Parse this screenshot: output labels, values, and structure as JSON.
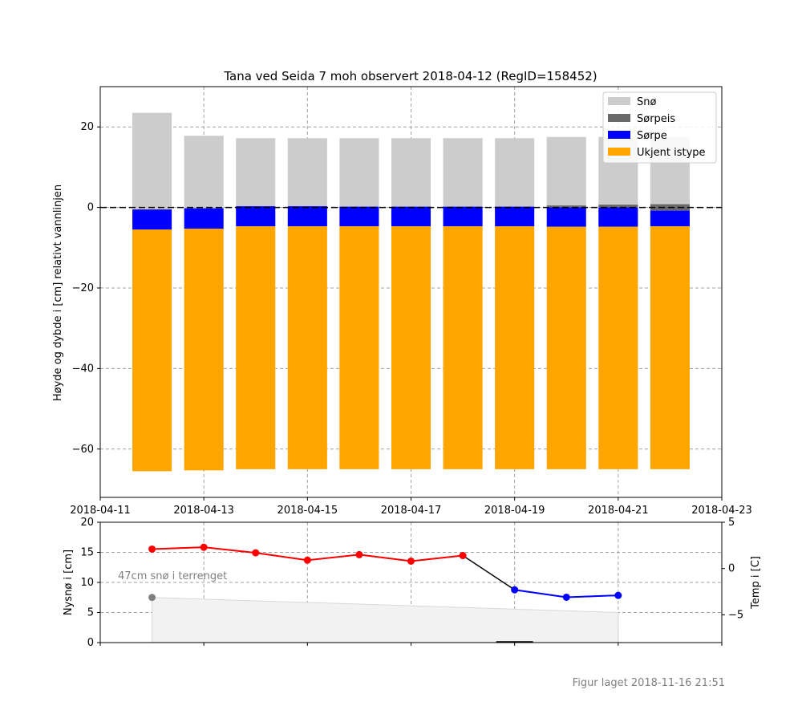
{
  "title": "Tana ved Seida 7 moh observert 2018-04-12 (RegID=158452)",
  "footer": "Figur laget 2018-11-16 21:51",
  "chart_data": [
    {
      "type": "bar",
      "stacked": true,
      "ylabel": "Høyde og dybde i [cm] relativt vannlinjen",
      "ylim": [
        -72,
        30
      ],
      "yticks": [
        20,
        0,
        -20,
        -40,
        -60
      ],
      "xlim": [
        "2018-04-11",
        "2018-04-23"
      ],
      "xticks": [
        "2018-04-11",
        "2018-04-13",
        "2018-04-15",
        "2018-04-17",
        "2018-04-19",
        "2018-04-21",
        "2018-04-23"
      ],
      "grid": true,
      "legend_position": "top-right",
      "legend": [
        {
          "name": "Snø",
          "color": "#cccccc"
        },
        {
          "name": "Sørpeis",
          "color": "#696969"
        },
        {
          "name": "Sørpe",
          "color": "#0000ff"
        },
        {
          "name": "Ukjent istype",
          "color": "#ffa500"
        }
      ],
      "water_line": 0,
      "dates": [
        "2018-04-12",
        "2018-04-13",
        "2018-04-14",
        "2018-04-15",
        "2018-04-16",
        "2018-04-17",
        "2018-04-18",
        "2018-04-19",
        "2018-04-20",
        "2018-04-21",
        "2018-04-22"
      ],
      "bars": [
        {
          "segments": [
            {
              "type": "Snø",
              "from": -0.5,
              "to": 23.5
            },
            {
              "type": "Sørpe",
              "from": -5.5,
              "to": -0.5
            },
            {
              "type": "Ukjent istype",
              "from": -65.5,
              "to": -5.5
            }
          ]
        },
        {
          "segments": [
            {
              "type": "Snø",
              "from": -0.2,
              "to": 17.8
            },
            {
              "type": "Sørpe",
              "from": -5.3,
              "to": -0.2
            },
            {
              "type": "Ukjent istype",
              "from": -65.3,
              "to": -5.3
            }
          ]
        },
        {
          "segments": [
            {
              "type": "Snø",
              "from": 0.3,
              "to": 17.2
            },
            {
              "type": "Sørpe",
              "from": -4.7,
              "to": 0.3
            },
            {
              "type": "Ukjent istype",
              "from": -65,
              "to": -4.7
            }
          ]
        },
        {
          "segments": [
            {
              "type": "Snø",
              "from": 0.3,
              "to": 17.2
            },
            {
              "type": "Sørpe",
              "from": -4.7,
              "to": 0.3
            },
            {
              "type": "Ukjent istype",
              "from": -65,
              "to": -4.7
            }
          ]
        },
        {
          "segments": [
            {
              "type": "Snø",
              "from": 0.2,
              "to": 17.2
            },
            {
              "type": "Sørpe",
              "from": -4.7,
              "to": 0.2
            },
            {
              "type": "Ukjent istype",
              "from": -65,
              "to": -4.7
            }
          ]
        },
        {
          "segments": [
            {
              "type": "Snø",
              "from": 0.2,
              "to": 17.2
            },
            {
              "type": "Sørpe",
              "from": -4.7,
              "to": 0.2
            },
            {
              "type": "Ukjent istype",
              "from": -65,
              "to": -4.7
            }
          ]
        },
        {
          "segments": [
            {
              "type": "Snø",
              "from": 0.2,
              "to": 17.2
            },
            {
              "type": "Sørpe",
              "from": -4.7,
              "to": 0.2
            },
            {
              "type": "Ukjent istype",
              "from": -65,
              "to": -4.7
            }
          ]
        },
        {
          "segments": [
            {
              "type": "Snø",
              "from": 0.2,
              "to": 17.2
            },
            {
              "type": "Sørpe",
              "from": -4.7,
              "to": 0.2
            },
            {
              "type": "Ukjent istype",
              "from": -65,
              "to": -4.7
            }
          ]
        },
        {
          "segments": [
            {
              "type": "Snø",
              "from": 0.5,
              "to": 17.5
            },
            {
              "type": "Sørpeis",
              "from": 0,
              "to": 0.5
            },
            {
              "type": "Sørpe",
              "from": -4.8,
              "to": 0
            },
            {
              "type": "Ukjent istype",
              "from": -65,
              "to": -4.8
            }
          ]
        },
        {
          "segments": [
            {
              "type": "Snø",
              "from": 0.7,
              "to": 17.5
            },
            {
              "type": "Sørpeis",
              "from": 0,
              "to": 0.7
            },
            {
              "type": "Sørpe",
              "from": -4.8,
              "to": 0
            },
            {
              "type": "Ukjent istype",
              "from": -65,
              "to": -4.8
            }
          ]
        },
        {
          "segments": [
            {
              "type": "Snø",
              "from": 0.8,
              "to": 17.5
            },
            {
              "type": "Sørpeis",
              "from": -0.8,
              "to": 0.8
            },
            {
              "type": "Sørpe",
              "from": -4.7,
              "to": -0.8
            },
            {
              "type": "Ukjent istype",
              "from": -65,
              "to": -4.7
            }
          ]
        }
      ]
    },
    {
      "type": "line",
      "ylabel_left": "Nysnø i [cm]",
      "ylabel_right": "Temp i [C]",
      "ylim_left": [
        0,
        20
      ],
      "yticks_left": [
        0,
        5,
        10,
        15,
        20
      ],
      "ylim_right": [
        -8,
        5
      ],
      "yticks_right": [
        5,
        0,
        -5
      ],
      "grid": true,
      "annotation": "47cm snø i terrenget",
      "snow_terrain": {
        "dates": [
          "2018-04-12",
          "2018-04-21"
        ],
        "values_cm": [
          7.5,
          5
        ]
      },
      "new_snow": [
        {
          "date": "2018-04-19",
          "value": 0.1
        }
      ],
      "temperature": {
        "dates": [
          "2018-04-12",
          "2018-04-13",
          "2018-04-14",
          "2018-04-15",
          "2018-04-16",
          "2018-04-17",
          "2018-04-18",
          "2018-04-19",
          "2018-04-20",
          "2018-04-21"
        ],
        "values": [
          2.1,
          2.3,
          1.7,
          0.9,
          1.5,
          0.8,
          1.4,
          -2.3,
          -3.1,
          -2.9
        ],
        "warm_color": "#ff0000",
        "cold_color": "#0000ff"
      }
    }
  ]
}
